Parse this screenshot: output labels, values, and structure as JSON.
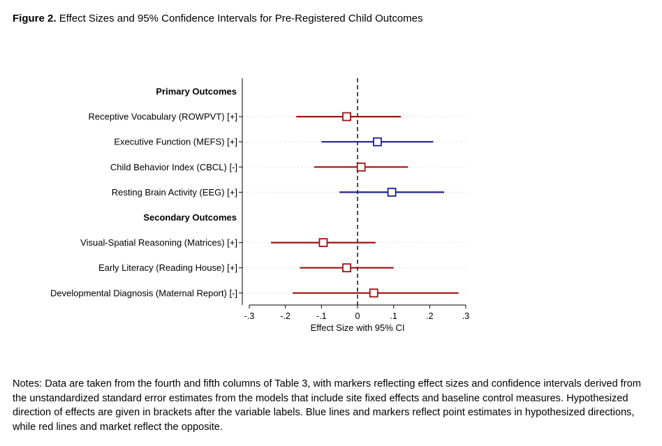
{
  "figure": {
    "label": "Figure 2.",
    "title": "Effect Sizes and 95% Confidence Intervals for Pre-Registered Child Outcomes"
  },
  "notes": "Notes: Data are taken from the fourth and fifth columns of Table 3, with markers reflecting effect sizes and confidence intervals derived from the unstandardized standard error estimates from the models that include site fixed effects and baseline control measures. Hypothesized direction of effects are given in brackets after the variable labels. Blue lines and markers reflect point estimates in hypothesized directions, while red lines and market reflect the opposite.",
  "colors": {
    "hypothesized": "#1f1f99",
    "opposite": "#a01010",
    "zero_line": "#000000",
    "grid": "#e6e6e6"
  },
  "chart_data": {
    "type": "forest",
    "xlabel": "Effect Size with 95% CI",
    "xlim": [
      -0.3,
      0.3
    ],
    "xticks": [
      -0.3,
      -0.2,
      -0.1,
      0,
      0.1,
      0.2,
      0.3
    ],
    "xtick_labels": [
      "-.3",
      "-.2",
      "-.1",
      "0",
      ".1",
      ".2",
      ".3"
    ],
    "reference_line": 0,
    "rows": [
      {
        "label": "Primary Outcomes",
        "header": true
      },
      {
        "label": "Receptive Vocabulary (ROWPVT) [+]",
        "estimate": -0.03,
        "ci_low": -0.17,
        "ci_high": 0.12,
        "direction": "opposite"
      },
      {
        "label": "Executive Function (MEFS) [+]",
        "estimate": 0.055,
        "ci_low": -0.1,
        "ci_high": 0.21,
        "direction": "hypothesized"
      },
      {
        "label": "Child Behavior Index (CBCL) [-]",
        "estimate": 0.01,
        "ci_low": -0.12,
        "ci_high": 0.14,
        "direction": "opposite"
      },
      {
        "label": "Resting Brain Activity (EEG) [+]",
        "estimate": 0.095,
        "ci_low": -0.05,
        "ci_high": 0.24,
        "direction": "hypothesized"
      },
      {
        "label": "Secondary Outcomes",
        "header": true
      },
      {
        "label": "Visual-Spatial Reasoning (Matrices) [+]",
        "estimate": -0.095,
        "ci_low": -0.24,
        "ci_high": 0.05,
        "direction": "opposite"
      },
      {
        "label": "Early Literacy (Reading House) [+]",
        "estimate": -0.03,
        "ci_low": -0.16,
        "ci_high": 0.1,
        "direction": "opposite"
      },
      {
        "label": "Developmental Diagnosis (Maternal Report) [-]",
        "estimate": 0.045,
        "ci_low": -0.18,
        "ci_high": 0.28,
        "direction": "opposite"
      }
    ]
  }
}
